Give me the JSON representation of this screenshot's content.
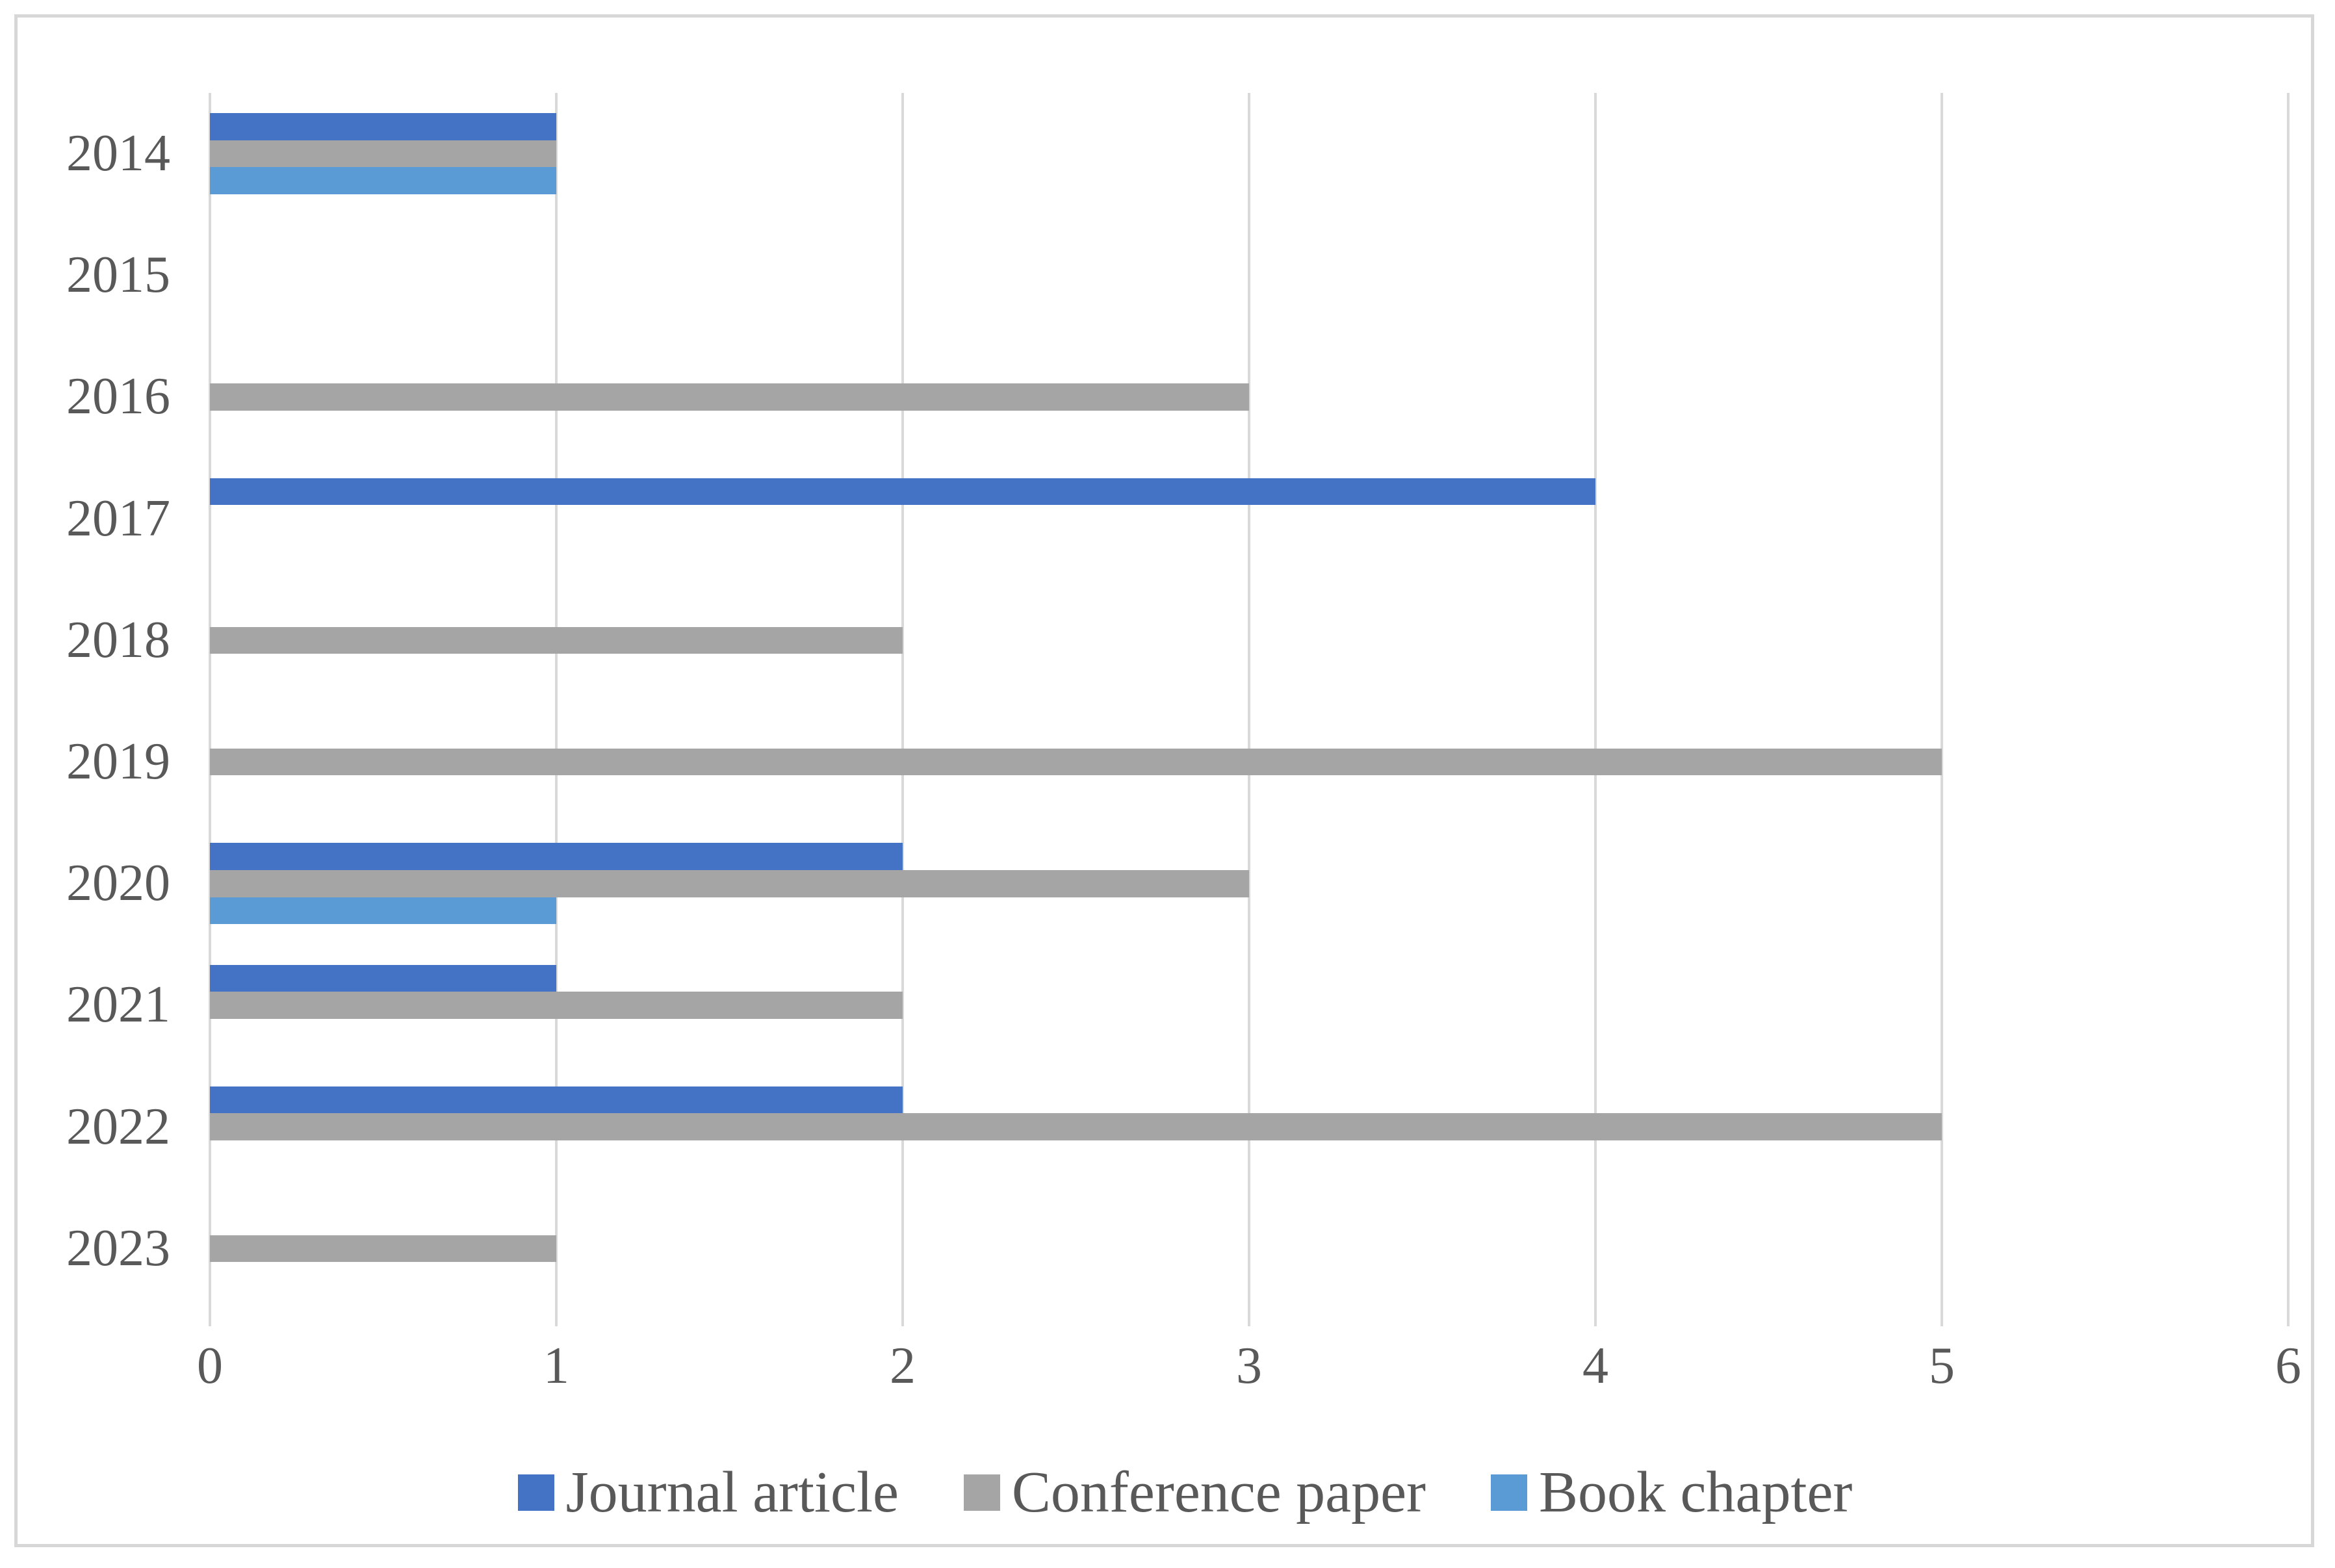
{
  "chart_data": {
    "type": "bar",
    "orientation": "horizontal",
    "title": "",
    "xlabel": "",
    "ylabel": "",
    "categories": [
      "2014",
      "2015",
      "2016",
      "2017",
      "2018",
      "2019",
      "2020",
      "2021",
      "2022",
      "2023"
    ],
    "series": [
      {
        "name": "Journal article",
        "color": "#4472C4",
        "values": [
          1,
          0,
          0,
          4,
          0,
          0,
          2,
          1,
          2,
          0
        ]
      },
      {
        "name": "Conference paper",
        "color": "#A5A5A5",
        "values": [
          1,
          0,
          3,
          0,
          2,
          5,
          3,
          2,
          5,
          1
        ]
      },
      {
        "name": "Book chapter",
        "color": "#5B9BD5",
        "values": [
          1,
          0,
          0,
          0,
          0,
          0,
          1,
          0,
          0,
          0
        ]
      }
    ],
    "x_axis": {
      "min": 0,
      "max": 6,
      "tick_labels": [
        "0",
        "1",
        "2",
        "3",
        "4",
        "5",
        "6"
      ]
    },
    "grid": "vertical",
    "legend_position": "bottom",
    "colors": {
      "text": "#595959",
      "gridline": "#D9D9D9",
      "chart_border": "#D7D7D7",
      "background": "#FFFFFF"
    }
  }
}
